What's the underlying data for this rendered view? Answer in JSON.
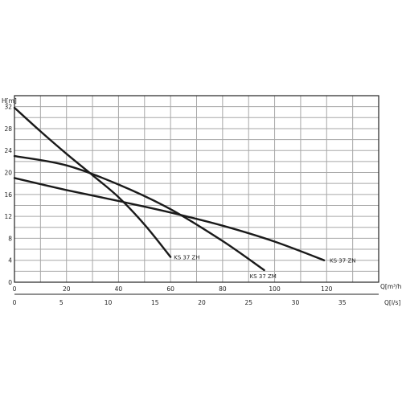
{
  "chart_data": {
    "type": "line",
    "title": "",
    "ylabel": "H[m]",
    "xlabel": "Q[m³/h]",
    "xlabel_secondary": "Q[l/s]",
    "xlim": [
      0,
      140
    ],
    "ylim": [
      0,
      34
    ],
    "xticks": [
      0,
      20,
      40,
      60,
      80,
      100,
      120
    ],
    "yticks": [
      0,
      4,
      8,
      12,
      16,
      20,
      24,
      28,
      32
    ],
    "xticks_secondary": [
      0,
      5,
      10,
      15,
      20,
      25,
      30,
      35
    ],
    "grid": true,
    "series": [
      {
        "name": "KS 37 ZH",
        "x": [
          0,
          10,
          20,
          30,
          40,
          50,
          60
        ],
        "y": [
          31.8,
          27.5,
          23.4,
          19.5,
          15.5,
          10.5,
          4.6
        ]
      },
      {
        "name": "KS 37 ZM",
        "x": [
          0,
          20,
          40,
          60,
          80,
          96
        ],
        "y": [
          23.0,
          21.3,
          17.8,
          13.3,
          7.5,
          2.2
        ]
      },
      {
        "name": "KS 37 ZN",
        "x": [
          0,
          20,
          40,
          60,
          80,
          100,
          119
        ],
        "y": [
          19.0,
          16.8,
          14.8,
          12.7,
          10.3,
          7.4,
          4.0
        ]
      }
    ]
  },
  "colors": {
    "curve": "#1a1a1a",
    "grid": "#a7a7a7",
    "text": "#222222"
  }
}
